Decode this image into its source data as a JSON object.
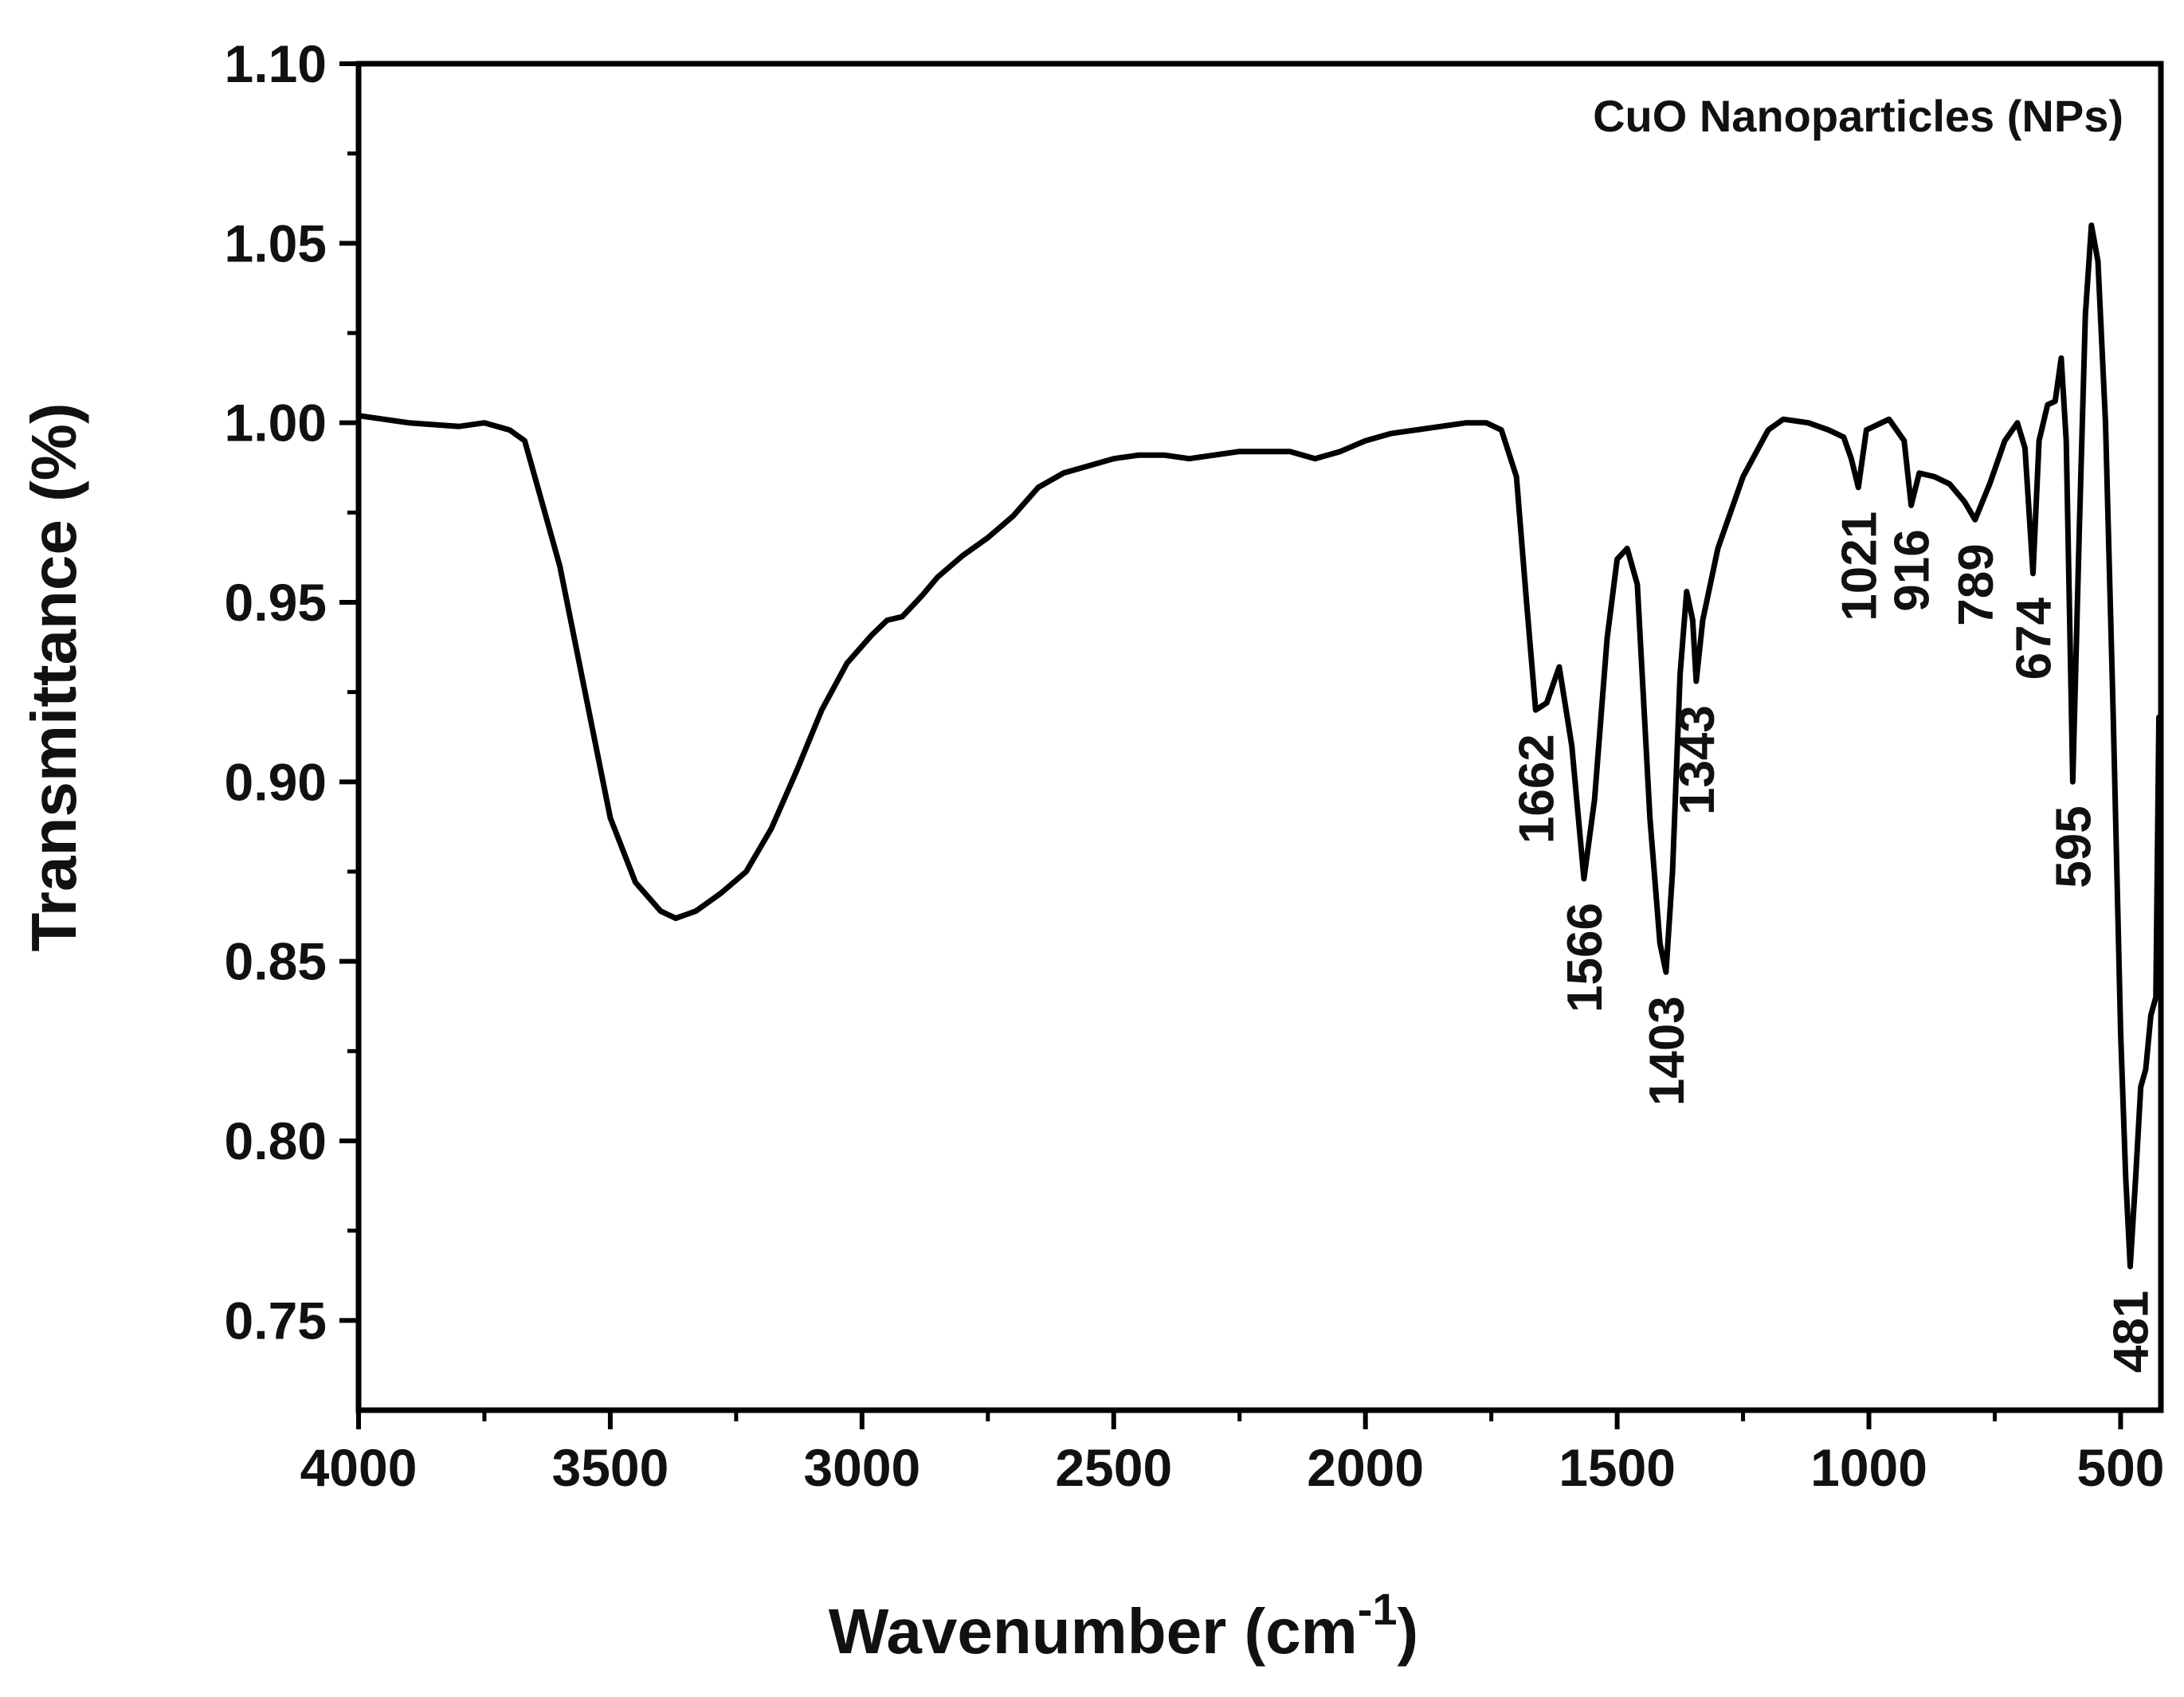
{
  "chart_data": {
    "type": "line",
    "title": "CuO Nanoparticles (NPs)",
    "xlabel": "Wavenumber (cm",
    "xlabel_sup": "-1",
    "xlabel_close": ")",
    "ylabel": "Transmittance (%)",
    "xlim": [
      4000,
      420
    ],
    "ylim": [
      0.725,
      1.1
    ],
    "x_ticks": [
      4000,
      3500,
      3000,
      2500,
      2000,
      1500,
      1000,
      500
    ],
    "x_tick_labels": [
      "4000",
      "3500",
      "3000",
      "2500",
      "2000",
      "1500",
      "1000",
      "500"
    ],
    "y_ticks": [
      0.75,
      0.8,
      0.85,
      0.9,
      0.95,
      1.0,
      1.05,
      1.1
    ],
    "y_tick_labels": [
      "0.75",
      "0.80",
      "0.85",
      "0.90",
      "0.95",
      "1.00",
      "1.05",
      "1.10"
    ],
    "grid": false,
    "series": [
      {
        "name": "CuO NPs",
        "color": "#000000",
        "points": [
          [
            4000,
            1.002
          ],
          [
            3900,
            1.0
          ],
          [
            3800,
            0.999
          ],
          [
            3750,
            1.0
          ],
          [
            3700,
            0.998
          ],
          [
            3670,
            0.995
          ],
          [
            3640,
            0.98
          ],
          [
            3600,
            0.96
          ],
          [
            3550,
            0.925
          ],
          [
            3500,
            0.89
          ],
          [
            3450,
            0.872
          ],
          [
            3400,
            0.864
          ],
          [
            3370,
            0.862
          ],
          [
            3330,
            0.864
          ],
          [
            3280,
            0.869
          ],
          [
            3230,
            0.875
          ],
          [
            3180,
            0.887
          ],
          [
            3130,
            0.903
          ],
          [
            3080,
            0.92
          ],
          [
            3030,
            0.933
          ],
          [
            2980,
            0.941
          ],
          [
            2950,
            0.945
          ],
          [
            2920,
            0.946
          ],
          [
            2880,
            0.952
          ],
          [
            2850,
            0.957
          ],
          [
            2800,
            0.963
          ],
          [
            2750,
            0.968
          ],
          [
            2700,
            0.974
          ],
          [
            2650,
            0.982
          ],
          [
            2600,
            0.986
          ],
          [
            2550,
            0.988
          ],
          [
            2500,
            0.99
          ],
          [
            2450,
            0.991
          ],
          [
            2400,
            0.991
          ],
          [
            2350,
            0.99
          ],
          [
            2300,
            0.991
          ],
          [
            2250,
            0.992
          ],
          [
            2200,
            0.992
          ],
          [
            2150,
            0.992
          ],
          [
            2100,
            0.99
          ],
          [
            2050,
            0.992
          ],
          [
            2000,
            0.995
          ],
          [
            1950,
            0.997
          ],
          [
            1900,
            0.998
          ],
          [
            1850,
            0.999
          ],
          [
            1800,
            1.0
          ],
          [
            1760,
            1.0
          ],
          [
            1730,
            0.998
          ],
          [
            1700,
            0.985
          ],
          [
            1680,
            0.95
          ],
          [
            1662,
            0.92
          ],
          [
            1640,
            0.922
          ],
          [
            1615,
            0.932
          ],
          [
            1590,
            0.91
          ],
          [
            1566,
            0.873
          ],
          [
            1545,
            0.895
          ],
          [
            1520,
            0.94
          ],
          [
            1500,
            0.962
          ],
          [
            1480,
            0.965
          ],
          [
            1460,
            0.955
          ],
          [
            1435,
            0.89
          ],
          [
            1415,
            0.855
          ],
          [
            1403,
            0.847
          ],
          [
            1390,
            0.875
          ],
          [
            1375,
            0.93
          ],
          [
            1362,
            0.953
          ],
          [
            1350,
            0.945
          ],
          [
            1343,
            0.928
          ],
          [
            1330,
            0.945
          ],
          [
            1300,
            0.965
          ],
          [
            1250,
            0.985
          ],
          [
            1200,
            0.998
          ],
          [
            1170,
            1.001
          ],
          [
            1120,
            1.0
          ],
          [
            1080,
            0.998
          ],
          [
            1050,
            0.996
          ],
          [
            1035,
            0.99
          ],
          [
            1021,
            0.982
          ],
          [
            1005,
            0.998
          ],
          [
            960,
            1.001
          ],
          [
            930,
            0.995
          ],
          [
            916,
            0.977
          ],
          [
            900,
            0.986
          ],
          [
            870,
            0.985
          ],
          [
            840,
            0.983
          ],
          [
            810,
            0.978
          ],
          [
            789,
            0.973
          ],
          [
            760,
            0.983
          ],
          [
            730,
            0.995
          ],
          [
            705,
            1.0
          ],
          [
            690,
            0.993
          ],
          [
            674,
            0.958
          ],
          [
            662,
            0.995
          ],
          [
            645,
            1.005
          ],
          [
            630,
            1.006
          ],
          [
            618,
            1.018
          ],
          [
            608,
            0.995
          ],
          [
            595,
            0.9
          ],
          [
            582,
            0.97
          ],
          [
            570,
            1.03
          ],
          [
            558,
            1.055
          ],
          [
            545,
            1.045
          ],
          [
            530,
            1.0
          ],
          [
            515,
            0.92
          ],
          [
            500,
            0.83
          ],
          [
            490,
            0.79
          ],
          [
            481,
            0.765
          ],
          [
            470,
            0.79
          ],
          [
            460,
            0.815
          ],
          [
            450,
            0.82
          ],
          [
            440,
            0.835
          ],
          [
            430,
            0.84
          ],
          [
            424,
            0.918
          ]
        ]
      }
    ],
    "annotations": [
      {
        "label": "1662",
        "x": 1662,
        "y": 0.92
      },
      {
        "label": "1566",
        "x": 1566,
        "y": 0.873
      },
      {
        "label": "1403",
        "x": 1403,
        "y": 0.847
      },
      {
        "label": "1343",
        "x": 1343,
        "y": 0.928
      },
      {
        "label": "1021",
        "x": 1021,
        "y": 0.982
      },
      {
        "label": "916",
        "x": 916,
        "y": 0.977
      },
      {
        "label": "789",
        "x": 789,
        "y": 0.973
      },
      {
        "label": "674",
        "x": 674,
        "y": 0.958
      },
      {
        "label": "595",
        "x": 595,
        "y": 0.9
      },
      {
        "label": "481",
        "x": 481,
        "y": 0.765
      }
    ]
  }
}
